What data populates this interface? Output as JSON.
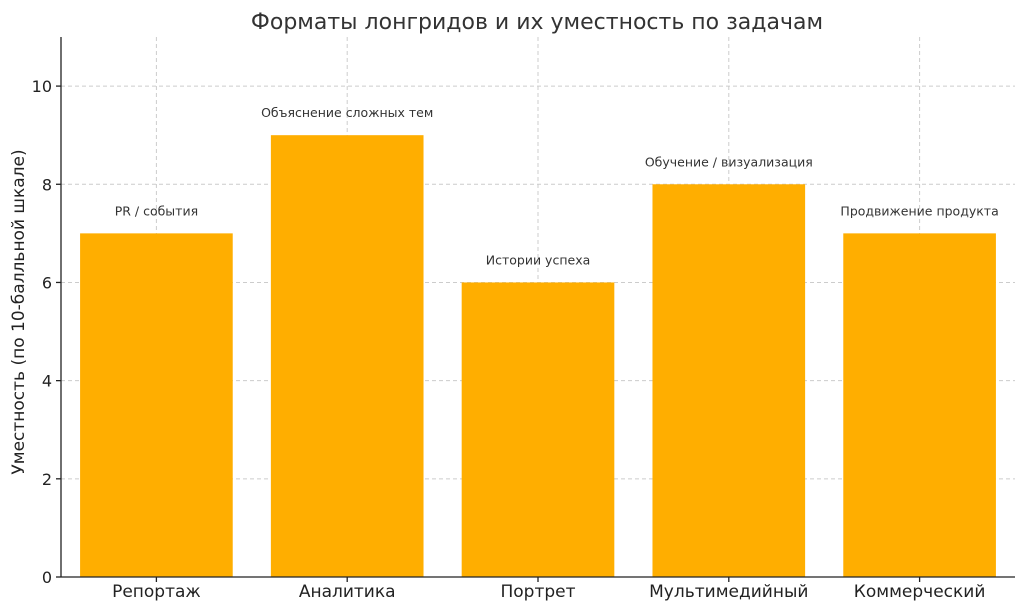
{
  "chart_data": {
    "type": "bar",
    "title": "Форматы лонгридов и их уместность по задачам",
    "xlabel": "",
    "ylabel": "Уместность (по 10-балльной шкале)",
    "categories": [
      "Репортаж",
      "Аналитика",
      "Портрет",
      "Мультимедийный",
      "Коммерческий"
    ],
    "values": [
      7,
      9,
      6,
      8,
      7
    ],
    "annotations": [
      "PR / события",
      "Объяснение сложных тем",
      "Истории успеха",
      "Обучение / визуализация",
      "Продвижение продукта"
    ],
    "ylim": [
      0,
      11
    ],
    "yticks": [
      0,
      2,
      4,
      6,
      8,
      10
    ],
    "grid": true,
    "bar_color": "#FFAE00"
  }
}
